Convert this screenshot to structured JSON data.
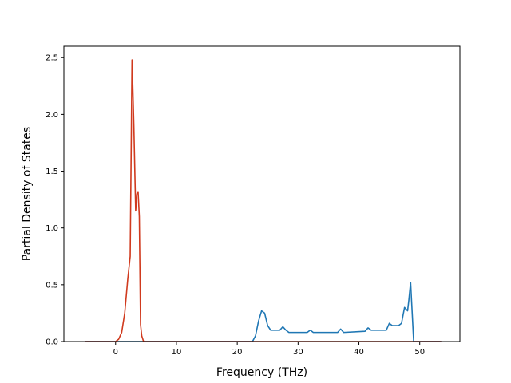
{
  "chart_data": {
    "type": "line",
    "title": "",
    "xlabel": "Frequency (THz)",
    "ylabel": "Partial Density of States",
    "xlim": [
      -8.5,
      56.6
    ],
    "ylim": [
      0.0,
      2.6
    ],
    "xticks": [
      0,
      10,
      20,
      30,
      40,
      50
    ],
    "yticks": [
      0.0,
      0.5,
      1.0,
      1.5,
      2.0,
      2.5
    ],
    "xtick_labels": [
      "0",
      "10",
      "20",
      "30",
      "40",
      "50"
    ],
    "ytick_labels": [
      "0.0",
      "0.5",
      "1.0",
      "1.5",
      "2.0",
      "2.5"
    ],
    "grid": false,
    "legend": "none",
    "series": [
      {
        "color": "#1f77b4",
        "x": [
          -5.0,
          22.5,
          23.0,
          23.5,
          24.0,
          24.5,
          25.0,
          25.5,
          26.0,
          27.0,
          27.5,
          28.0,
          28.5,
          29.0,
          31.5,
          32.0,
          32.5,
          33.0,
          36.5,
          37.0,
          37.5,
          41.0,
          41.5,
          42.0,
          44.5,
          45.0,
          45.5,
          46.5,
          47.0,
          47.5,
          48.0,
          48.2,
          48.5,
          49.0,
          53.5
        ],
        "y": [
          0.0,
          0.0,
          0.05,
          0.18,
          0.27,
          0.25,
          0.14,
          0.1,
          0.1,
          0.1,
          0.13,
          0.1,
          0.08,
          0.08,
          0.08,
          0.1,
          0.08,
          0.08,
          0.08,
          0.11,
          0.08,
          0.09,
          0.12,
          0.1,
          0.1,
          0.16,
          0.14,
          0.14,
          0.16,
          0.3,
          0.27,
          0.36,
          0.52,
          0.0,
          0.0
        ]
      },
      {
        "color": "#d03a1e",
        "x": [
          -5.0,
          0.0,
          0.5,
          1.0,
          1.5,
          2.0,
          2.4,
          2.7,
          2.8,
          3.0,
          3.3,
          3.5,
          3.7,
          3.9,
          4.1,
          4.3,
          4.6,
          53.5
        ],
        "y": [
          0.0,
          0.0,
          0.02,
          0.08,
          0.25,
          0.55,
          0.75,
          2.48,
          2.3,
          1.9,
          1.15,
          1.3,
          1.32,
          1.1,
          0.15,
          0.05,
          0.0,
          0.0
        ]
      }
    ]
  }
}
